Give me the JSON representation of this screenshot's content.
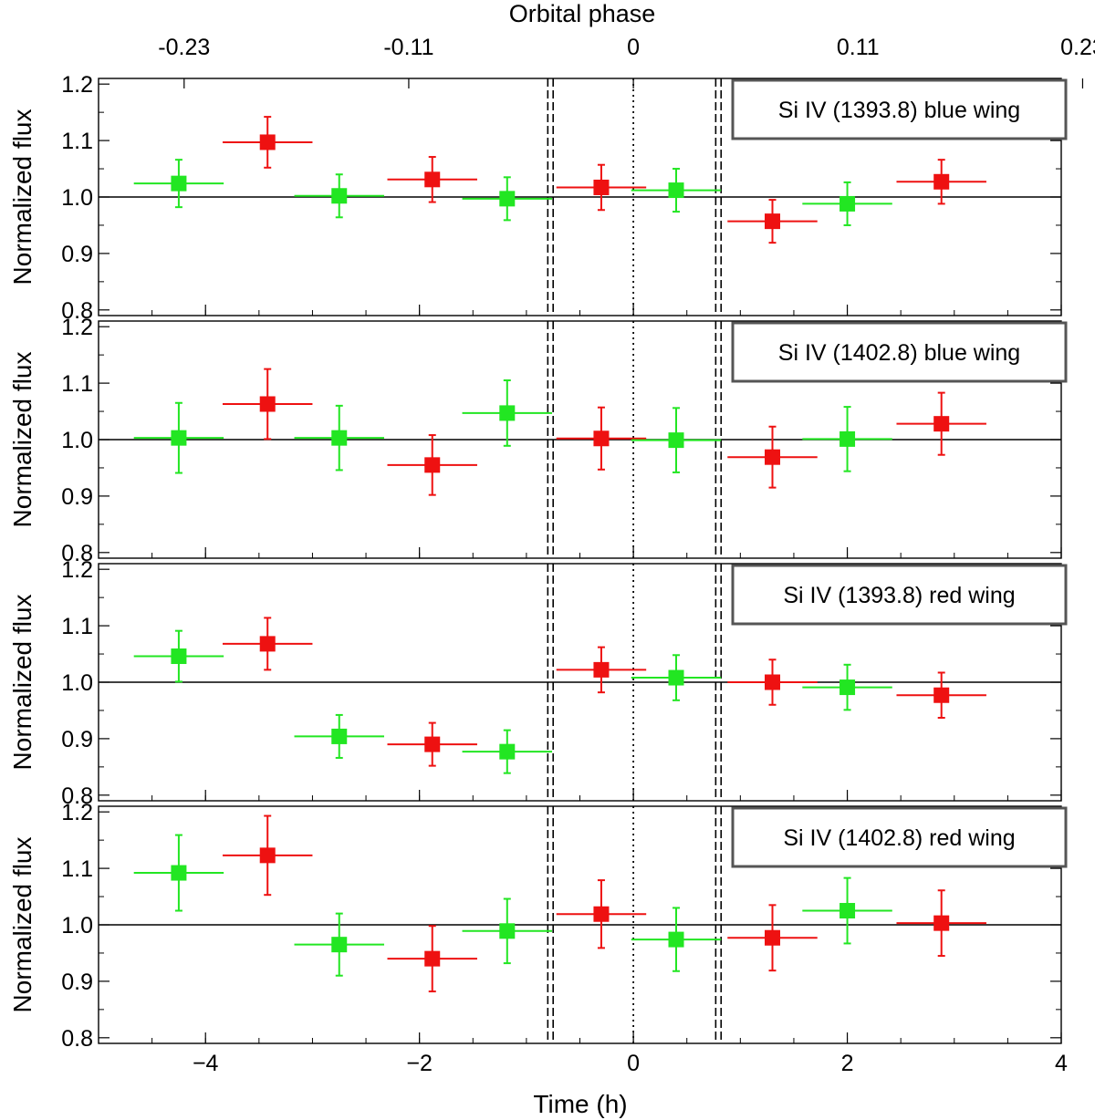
{
  "chart_data": {
    "type": "scatter",
    "top_axis_title": "Orbital phase",
    "top_ticks": [
      "-0.23",
      "-0.11",
      "0",
      "0.11",
      "0.23"
    ],
    "top_tick_times": [
      -4.2,
      -2.1,
      0,
      2.1,
      4.2
    ],
    "xlabel": "Time (h)",
    "xlim": [
      -5,
      4
    ],
    "xticks": [
      -4,
      -2,
      0,
      2,
      4
    ],
    "xtick_labels": [
      "−4",
      "−2",
      "0",
      "2",
      "4"
    ],
    "ylabel": "Normalized flux",
    "ylim": [
      0.79,
      1.21
    ],
    "yticks": [
      0.8,
      0.9,
      1.0,
      1.1,
      1.2
    ],
    "ytick_labels": [
      "0.8",
      "0.9",
      "1.0",
      "1.1",
      "1.2"
    ],
    "reference_line_y": 1.0,
    "dotted_line_x": 0,
    "dashed_lines_x": [
      -0.8,
      -0.75,
      0.77,
      0.82
    ],
    "colors": {
      "green": "#22e622",
      "red": "#ee1111",
      "frame": "#555555"
    },
    "panels": [
      {
        "title": "Si IV (1393.8) blue wing",
        "points": [
          {
            "x": -4.25,
            "xerr": 0.42,
            "y": 1.024,
            "yerr": 0.042,
            "color": "green"
          },
          {
            "x": -3.42,
            "xerr": 0.42,
            "y": 1.097,
            "yerr": 0.045,
            "color": "red"
          },
          {
            "x": -2.75,
            "xerr": 0.42,
            "y": 1.002,
            "yerr": 0.038,
            "color": "green"
          },
          {
            "x": -1.88,
            "xerr": 0.42,
            "y": 1.031,
            "yerr": 0.04,
            "color": "red"
          },
          {
            "x": -1.18,
            "xerr": 0.42,
            "y": 0.997,
            "yerr": 0.038,
            "color": "green"
          },
          {
            "x": -0.3,
            "xerr": 0.42,
            "y": 1.017,
            "yerr": 0.04,
            "color": "red"
          },
          {
            "x": 0.4,
            "xerr": 0.42,
            "y": 1.012,
            "yerr": 0.038,
            "color": "green"
          },
          {
            "x": 1.3,
            "xerr": 0.42,
            "y": 0.957,
            "yerr": 0.038,
            "color": "red"
          },
          {
            "x": 2.0,
            "xerr": 0.42,
            "y": 0.988,
            "yerr": 0.038,
            "color": "green"
          },
          {
            "x": 2.88,
            "xerr": 0.42,
            "y": 1.027,
            "yerr": 0.039,
            "color": "red"
          }
        ]
      },
      {
        "title": "Si IV (1402.8) blue wing",
        "points": [
          {
            "x": -4.25,
            "xerr": 0.42,
            "y": 1.003,
            "yerr": 0.062,
            "color": "green"
          },
          {
            "x": -3.42,
            "xerr": 0.42,
            "y": 1.063,
            "yerr": 0.062,
            "color": "red"
          },
          {
            "x": -2.75,
            "xerr": 0.42,
            "y": 1.003,
            "yerr": 0.057,
            "color": "green"
          },
          {
            "x": -1.88,
            "xerr": 0.42,
            "y": 0.955,
            "yerr": 0.053,
            "color": "red"
          },
          {
            "x": -1.18,
            "xerr": 0.42,
            "y": 1.047,
            "yerr": 0.058,
            "color": "green"
          },
          {
            "x": -0.3,
            "xerr": 0.42,
            "y": 1.002,
            "yerr": 0.055,
            "color": "red"
          },
          {
            "x": 0.4,
            "xerr": 0.42,
            "y": 0.999,
            "yerr": 0.057,
            "color": "green"
          },
          {
            "x": 1.3,
            "xerr": 0.42,
            "y": 0.969,
            "yerr": 0.054,
            "color": "red"
          },
          {
            "x": 2.0,
            "xerr": 0.42,
            "y": 1.001,
            "yerr": 0.057,
            "color": "green"
          },
          {
            "x": 2.88,
            "xerr": 0.42,
            "y": 1.028,
            "yerr": 0.055,
            "color": "red"
          }
        ]
      },
      {
        "title": "Si IV (1393.8) red wing",
        "points": [
          {
            "x": -4.25,
            "xerr": 0.42,
            "y": 1.046,
            "yerr": 0.045,
            "color": "green"
          },
          {
            "x": -3.42,
            "xerr": 0.42,
            "y": 1.068,
            "yerr": 0.046,
            "color": "red"
          },
          {
            "x": -2.75,
            "xerr": 0.42,
            "y": 0.904,
            "yerr": 0.038,
            "color": "green"
          },
          {
            "x": -1.88,
            "xerr": 0.42,
            "y": 0.89,
            "yerr": 0.038,
            "color": "red"
          },
          {
            "x": -1.18,
            "xerr": 0.42,
            "y": 0.877,
            "yerr": 0.038,
            "color": "green"
          },
          {
            "x": -0.3,
            "xerr": 0.42,
            "y": 1.022,
            "yerr": 0.04,
            "color": "red"
          },
          {
            "x": 0.4,
            "xerr": 0.42,
            "y": 1.008,
            "yerr": 0.04,
            "color": "green"
          },
          {
            "x": 1.3,
            "xerr": 0.42,
            "y": 1.0,
            "yerr": 0.04,
            "color": "red"
          },
          {
            "x": 2.0,
            "xerr": 0.42,
            "y": 0.991,
            "yerr": 0.04,
            "color": "green"
          },
          {
            "x": 2.88,
            "xerr": 0.42,
            "y": 0.977,
            "yerr": 0.04,
            "color": "red"
          }
        ]
      },
      {
        "title": "Si IV (1402.8) red wing",
        "points": [
          {
            "x": -4.25,
            "xerr": 0.42,
            "y": 1.092,
            "yerr": 0.067,
            "color": "green"
          },
          {
            "x": -3.42,
            "xerr": 0.42,
            "y": 1.123,
            "yerr": 0.07,
            "color": "red"
          },
          {
            "x": -2.75,
            "xerr": 0.42,
            "y": 0.965,
            "yerr": 0.055,
            "color": "green"
          },
          {
            "x": -1.88,
            "xerr": 0.42,
            "y": 0.94,
            "yerr": 0.058,
            "color": "red"
          },
          {
            "x": -1.18,
            "xerr": 0.42,
            "y": 0.989,
            "yerr": 0.057,
            "color": "green"
          },
          {
            "x": -0.3,
            "xerr": 0.42,
            "y": 1.019,
            "yerr": 0.06,
            "color": "red"
          },
          {
            "x": 0.4,
            "xerr": 0.42,
            "y": 0.974,
            "yerr": 0.056,
            "color": "green"
          },
          {
            "x": 1.3,
            "xerr": 0.42,
            "y": 0.977,
            "yerr": 0.058,
            "color": "red"
          },
          {
            "x": 2.0,
            "xerr": 0.42,
            "y": 1.025,
            "yerr": 0.058,
            "color": "green"
          },
          {
            "x": 2.88,
            "xerr": 0.42,
            "y": 1.003,
            "yerr": 0.058,
            "color": "red"
          }
        ]
      }
    ]
  }
}
